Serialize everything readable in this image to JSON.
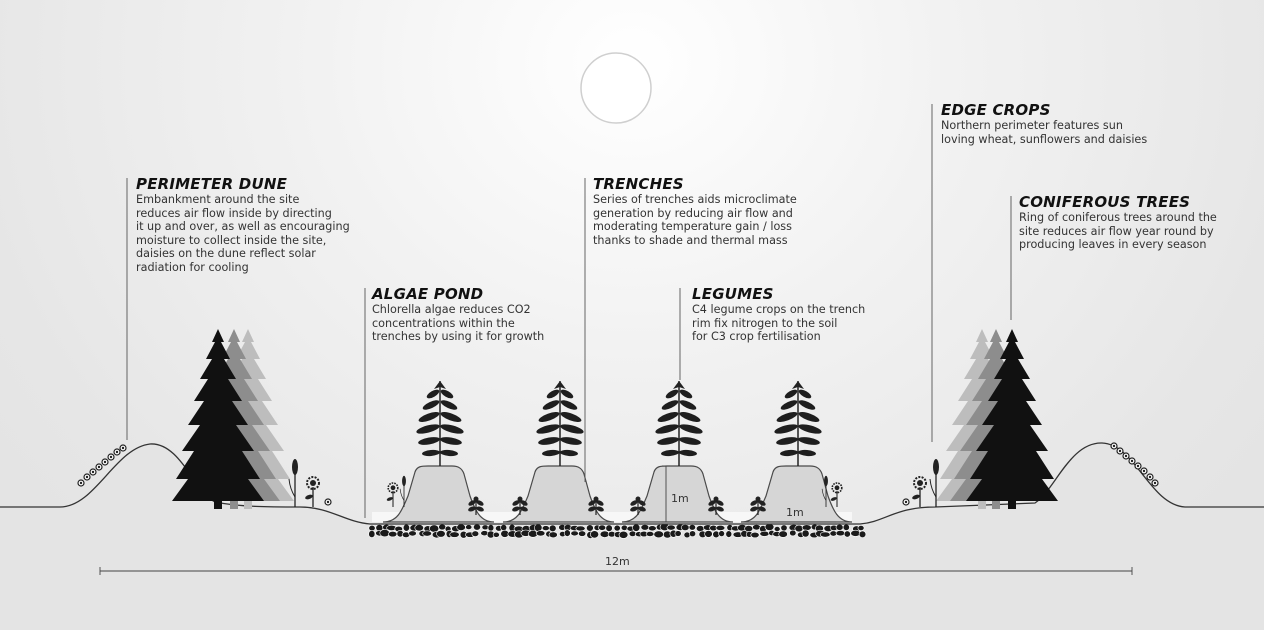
{
  "annotations": {
    "perimeter_dune": {
      "title": "PERIMETER DUNE",
      "lines": [
        "Embankment around the site",
        "reduces air flow inside by directing",
        "it up and over, as well as encouraging",
        "moisture to collect inside the site,",
        "daisies on the dune reflect solar",
        "radiation for cooling"
      ]
    },
    "algae_pond": {
      "title": "ALGAE POND",
      "lines": [
        "Chlorella algae reduces CO2",
        "concentrations within the",
        "trenches by using it for growth"
      ]
    },
    "trenches": {
      "title": "TRENCHES",
      "lines": [
        "Series of trenches aids microclimate",
        "generation by reducing air flow and",
        "moderating temperature gain / loss",
        "thanks to shade and thermal mass"
      ]
    },
    "legumes": {
      "title": "LEGUMES",
      "lines": [
        "C4 legume crops on the trench",
        "rim fix nitrogen to the soil",
        "for C3 crop fertilisation"
      ]
    },
    "edge_crops": {
      "title": "EDGE CROPS",
      "lines": [
        "Northern perimeter features sun",
        "loving wheat, sunflowers and daisies"
      ]
    },
    "coniferous_trees": {
      "title": "CONIFEROUS TREES",
      "lines": [
        "Ring of coniferous trees around the",
        "site reduces air flow year round by",
        "producing leaves in every season"
      ]
    }
  },
  "dimensions": {
    "height_label": "1m",
    "width_label": "1m",
    "overall_label": "12m"
  },
  "icons": [
    "sun-icon",
    "tree-icon",
    "plant-icon",
    "wheat-icon",
    "sunflower-icon",
    "daisy-icon"
  ]
}
